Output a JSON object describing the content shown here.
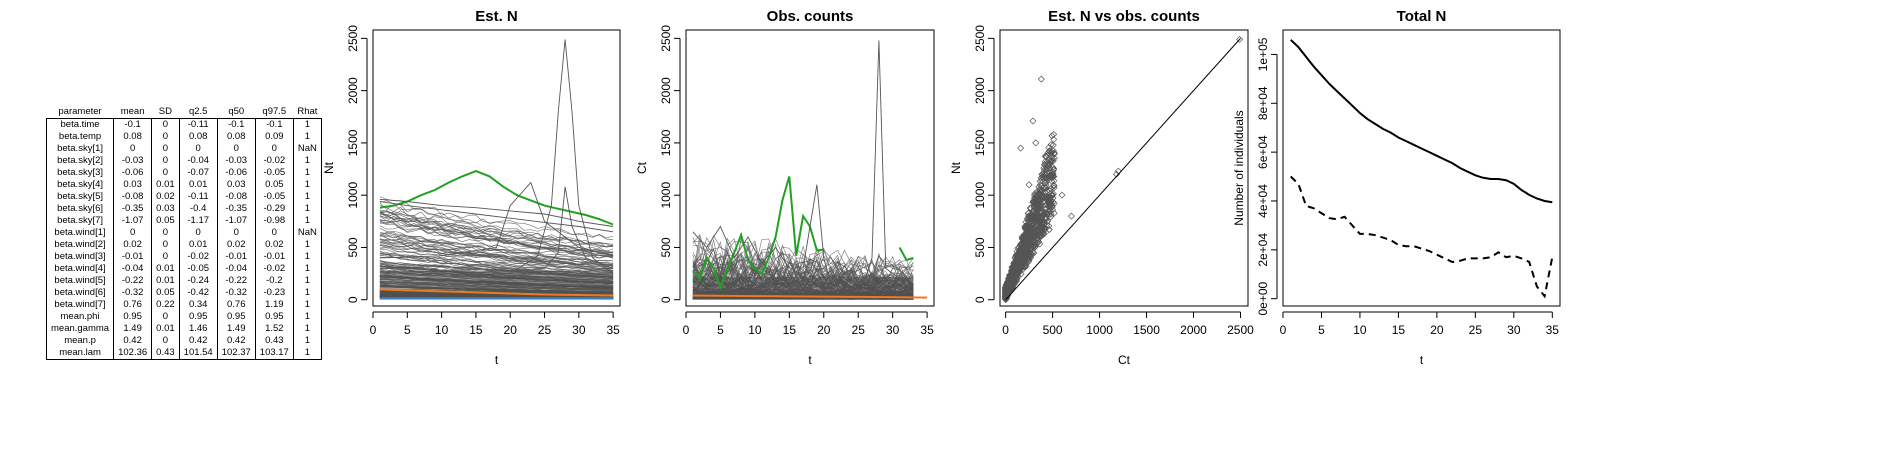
{
  "param_table": {
    "columns": [
      "parameter",
      "mean",
      "SD",
      "q2.5",
      "q50",
      "q97.5",
      "Rhat"
    ],
    "rows": [
      [
        "beta.time",
        "-0.1",
        "0",
        "-0.11",
        "-0.1",
        "-0.1",
        "1"
      ],
      [
        "beta.temp",
        "0.08",
        "0",
        "0.08",
        "0.08",
        "0.09",
        "1"
      ],
      [
        "beta.sky[1]",
        "0",
        "0",
        "0",
        "0",
        "0",
        "NaN"
      ],
      [
        "beta.sky[2]",
        "-0.03",
        "0",
        "-0.04",
        "-0.03",
        "-0.02",
        "1"
      ],
      [
        "beta.sky[3]",
        "-0.06",
        "0",
        "-0.07",
        "-0.06",
        "-0.05",
        "1"
      ],
      [
        "beta.sky[4]",
        "0.03",
        "0.01",
        "0.01",
        "0.03",
        "0.05",
        "1"
      ],
      [
        "beta.sky[5]",
        "-0.08",
        "0.02",
        "-0.11",
        "-0.08",
        "-0.05",
        "1"
      ],
      [
        "beta.sky[6]",
        "-0.35",
        "0.03",
        "-0.4",
        "-0.35",
        "-0.29",
        "1"
      ],
      [
        "beta.sky[7]",
        "-1.07",
        "0.05",
        "-1.17",
        "-1.07",
        "-0.98",
        "1"
      ],
      [
        "beta.wind[1]",
        "0",
        "0",
        "0",
        "0",
        "0",
        "NaN"
      ],
      [
        "beta.wind[2]",
        "0.02",
        "0",
        "0.01",
        "0.02",
        "0.02",
        "1"
      ],
      [
        "beta.wind[3]",
        "-0.01",
        "0",
        "-0.02",
        "-0.01",
        "-0.01",
        "1"
      ],
      [
        "beta.wind[4]",
        "-0.04",
        "0.01",
        "-0.05",
        "-0.04",
        "-0.02",
        "1"
      ],
      [
        "beta.wind[5]",
        "-0.22",
        "0.01",
        "-0.24",
        "-0.22",
        "-0.2",
        "1"
      ],
      [
        "beta.wind[6]",
        "-0.32",
        "0.05",
        "-0.42",
        "-0.32",
        "-0.23",
        "1"
      ],
      [
        "beta.wind[7]",
        "0.76",
        "0.22",
        "0.34",
        "0.76",
        "1.19",
        "1"
      ],
      [
        "mean.phi",
        "0.95",
        "0",
        "0.95",
        "0.95",
        "0.95",
        "1"
      ],
      [
        "mean.gamma",
        "1.49",
        "0.01",
        "1.46",
        "1.49",
        "1.52",
        "1"
      ],
      [
        "mean.p",
        "0.42",
        "0",
        "0.42",
        "0.42",
        "0.43",
        "1"
      ],
      [
        "mean.lam",
        "102.36",
        "0.43",
        "101.54",
        "102.37",
        "103.17",
        "1"
      ]
    ]
  },
  "chart_data": [
    {
      "type": "line",
      "title": "Est. N",
      "xlabel": "t",
      "ylabel": "Nt",
      "xlim": [
        0,
        36
      ],
      "ylim": [
        -60,
        2580
      ],
      "xticks": [
        0,
        5,
        10,
        15,
        20,
        25,
        30,
        35
      ],
      "yticks": [
        0,
        500,
        1000,
        1500,
        2000,
        2500
      ],
      "colors": {
        "sites": "#555555",
        "green": "#22a022",
        "orange": "#f07820",
        "blue": "#3b7fc4"
      },
      "series": [
        {
          "role": "green",
          "x": [
            1,
            3,
            5,
            7,
            9,
            11,
            13,
            15,
            17,
            19,
            21,
            23,
            25,
            27,
            29,
            31,
            33,
            35
          ],
          "values": [
            880,
            900,
            940,
            1000,
            1050,
            1120,
            1180,
            1230,
            1180,
            1080,
            1000,
            950,
            900,
            870,
            840,
            810,
            770,
            720
          ]
        },
        {
          "role": "orange",
          "x": [
            1,
            5,
            10,
            15,
            20,
            25,
            30,
            35
          ],
          "values": [
            100,
            90,
            80,
            70,
            60,
            50,
            45,
            40
          ]
        },
        {
          "role": "blue",
          "x": [
            1,
            35
          ],
          "values": [
            15,
            15
          ]
        },
        {
          "role": "sites",
          "x": [
            1,
            5,
            10,
            15,
            20,
            24,
            26,
            27,
            28,
            29,
            30,
            32,
            35
          ],
          "values": [
            320,
            300,
            280,
            260,
            250,
            420,
            900,
            1800,
            2490,
            1800,
            900,
            400,
            250
          ]
        },
        {
          "role": "sites",
          "x": [
            1,
            5,
            10,
            15,
            20,
            25,
            28,
            30,
            35
          ],
          "values": [
            960,
            940,
            900,
            880,
            850,
            820,
            780,
            750,
            700
          ]
        },
        {
          "role": "sites",
          "x": [
            1,
            5,
            10,
            15,
            20,
            25,
            30,
            35
          ],
          "values": [
            940,
            900,
            860,
            820,
            780,
            740,
            700,
            650
          ]
        },
        {
          "role": "sites",
          "x": [
            1,
            10,
            18,
            20,
            23,
            25,
            28,
            30,
            35
          ],
          "values": [
            400,
            420,
            500,
            900,
            1120,
            750,
            600,
            500,
            420
          ]
        },
        {
          "role": "sites",
          "x": [
            1,
            10,
            15,
            20,
            25,
            27,
            28,
            29,
            31,
            35
          ],
          "values": [
            300,
            320,
            300,
            280,
            300,
            450,
            1080,
            700,
            400,
            300
          ]
        }
      ]
    },
    {
      "type": "line",
      "title": "Obs. counts",
      "xlabel": "t",
      "ylabel": "Ct",
      "xlim": [
        0,
        36
      ],
      "ylim": [
        -60,
        2580
      ],
      "xticks": [
        0,
        5,
        10,
        15,
        20,
        25,
        30,
        35
      ],
      "yticks": [
        0,
        500,
        1000,
        1500,
        2000,
        2500
      ],
      "colors": {
        "sites": "#555555",
        "green": "#22a022",
        "orange": "#f07820"
      },
      "series": [
        {
          "role": "green",
          "x": [
            1,
            2,
            3,
            4,
            5,
            6,
            7,
            8,
            9,
            10,
            11,
            12,
            13,
            14,
            15,
            16,
            17,
            18,
            19,
            20,
            21,
            22,
            23,
            24,
            25,
            26,
            27,
            28,
            29,
            30,
            31,
            32,
            33
          ],
          "values": [
            280,
            200,
            400,
            300,
            120,
            300,
            450,
            620,
            380,
            300,
            250,
            400,
            600,
            950,
            1180,
            420,
            800,
            700,
            470,
            480,
            null,
            null,
            null,
            null,
            null,
            null,
            null,
            null,
            null,
            null,
            500,
            380,
            400
          ]
        },
        {
          "role": "orange",
          "x": [
            1,
            10,
            20,
            30,
            35
          ],
          "values": [
            40,
            35,
            30,
            25,
            20
          ]
        },
        {
          "role": "sites",
          "x": [
            25,
            26,
            27,
            28,
            29,
            30,
            31,
            32,
            33
          ],
          "values": [
            150,
            200,
            400,
            2480,
            300,
            250,
            200,
            150,
            120
          ]
        },
        {
          "role": "sites",
          "x": [
            17,
            18,
            19,
            20,
            21,
            22,
            23
          ],
          "values": [
            300,
            700,
            1100,
            400,
            150,
            300,
            200
          ]
        },
        {
          "role": "sites",
          "x": [
            1,
            3,
            5,
            7,
            9,
            11,
            13,
            15
          ],
          "values": [
            650,
            500,
            700,
            400,
            600,
            350,
            500,
            300
          ]
        }
      ]
    },
    {
      "type": "scatter",
      "title": "Est. N vs obs. counts",
      "xlabel": "Ct",
      "ylabel": "Nt",
      "xlim": [
        -60,
        2580
      ],
      "ylim": [
        -60,
        2580
      ],
      "xticks": [
        0,
        500,
        1000,
        1500,
        2000,
        2500
      ],
      "yticks": [
        0,
        500,
        1000,
        1500,
        2000,
        2500
      ],
      "reference_line": {
        "from": [
          0,
          0
        ],
        "to": [
          2500,
          2500
        ]
      },
      "highlight_points": [
        {
          "x": 380,
          "y": 2110
        },
        {
          "x": 160,
          "y": 1450
        },
        {
          "x": 290,
          "y": 1710
        },
        {
          "x": 320,
          "y": 1500
        },
        {
          "x": 420,
          "y": 1320
        },
        {
          "x": 1200,
          "y": 1230
        },
        {
          "x": 1180,
          "y": 1200
        },
        {
          "x": 2490,
          "y": 2490
        },
        {
          "x": 600,
          "y": 1000
        },
        {
          "x": 500,
          "y": 1200
        },
        {
          "x": 250,
          "y": 1100
        },
        {
          "x": 700,
          "y": 800
        }
      ]
    },
    {
      "type": "line",
      "title": "Total N",
      "xlabel": "t",
      "ylabel": "Number of individuals",
      "xlim": [
        0,
        36
      ],
      "ylim": [
        -3000,
        110000
      ],
      "xticks": [
        0,
        5,
        10,
        15,
        20,
        25,
        30,
        35
      ],
      "yticks": [
        0,
        20000,
        40000,
        60000,
        80000,
        100000
      ],
      "ytick_labels": [
        "0e+00",
        "2e+04",
        "4e+04",
        "6e+04",
        "8e+04",
        "1e+05"
      ],
      "series": [
        {
          "style": "solid",
          "x": [
            1,
            2,
            3,
            4,
            5,
            6,
            7,
            8,
            9,
            10,
            11,
            12,
            13,
            14,
            15,
            16,
            17,
            18,
            19,
            20,
            21,
            22,
            23,
            24,
            25,
            26,
            27,
            28,
            29,
            30,
            31,
            32,
            33,
            34,
            35
          ],
          "values": [
            106000,
            103000,
            99000,
            95000,
            91500,
            88000,
            85000,
            82000,
            79000,
            76000,
            73500,
            71500,
            69500,
            68000,
            66000,
            64500,
            63000,
            61500,
            60000,
            58500,
            57000,
            55500,
            53500,
            52000,
            50500,
            49500,
            49000,
            49000,
            48500,
            47000,
            44500,
            42500,
            41000,
            40000,
            39500
          ]
        },
        {
          "style": "dashed",
          "x": [
            1,
            2,
            3,
            4,
            5,
            6,
            7,
            8,
            9,
            10,
            11,
            12,
            13,
            14,
            15,
            16,
            17,
            18,
            19,
            20,
            21,
            22,
            23,
            24,
            25,
            26,
            27,
            28,
            29,
            30,
            31,
            32,
            33,
            34,
            35
          ],
          "values": [
            50000,
            47000,
            38000,
            37000,
            35000,
            33000,
            32500,
            33500,
            30000,
            26500,
            26500,
            26000,
            25000,
            24000,
            22000,
            21500,
            21500,
            20500,
            19500,
            18000,
            16500,
            15000,
            15500,
            16500,
            16500,
            16500,
            17000,
            19000,
            17000,
            17500,
            16500,
            15000,
            5000,
            1000,
            17000
          ]
        }
      ]
    }
  ]
}
